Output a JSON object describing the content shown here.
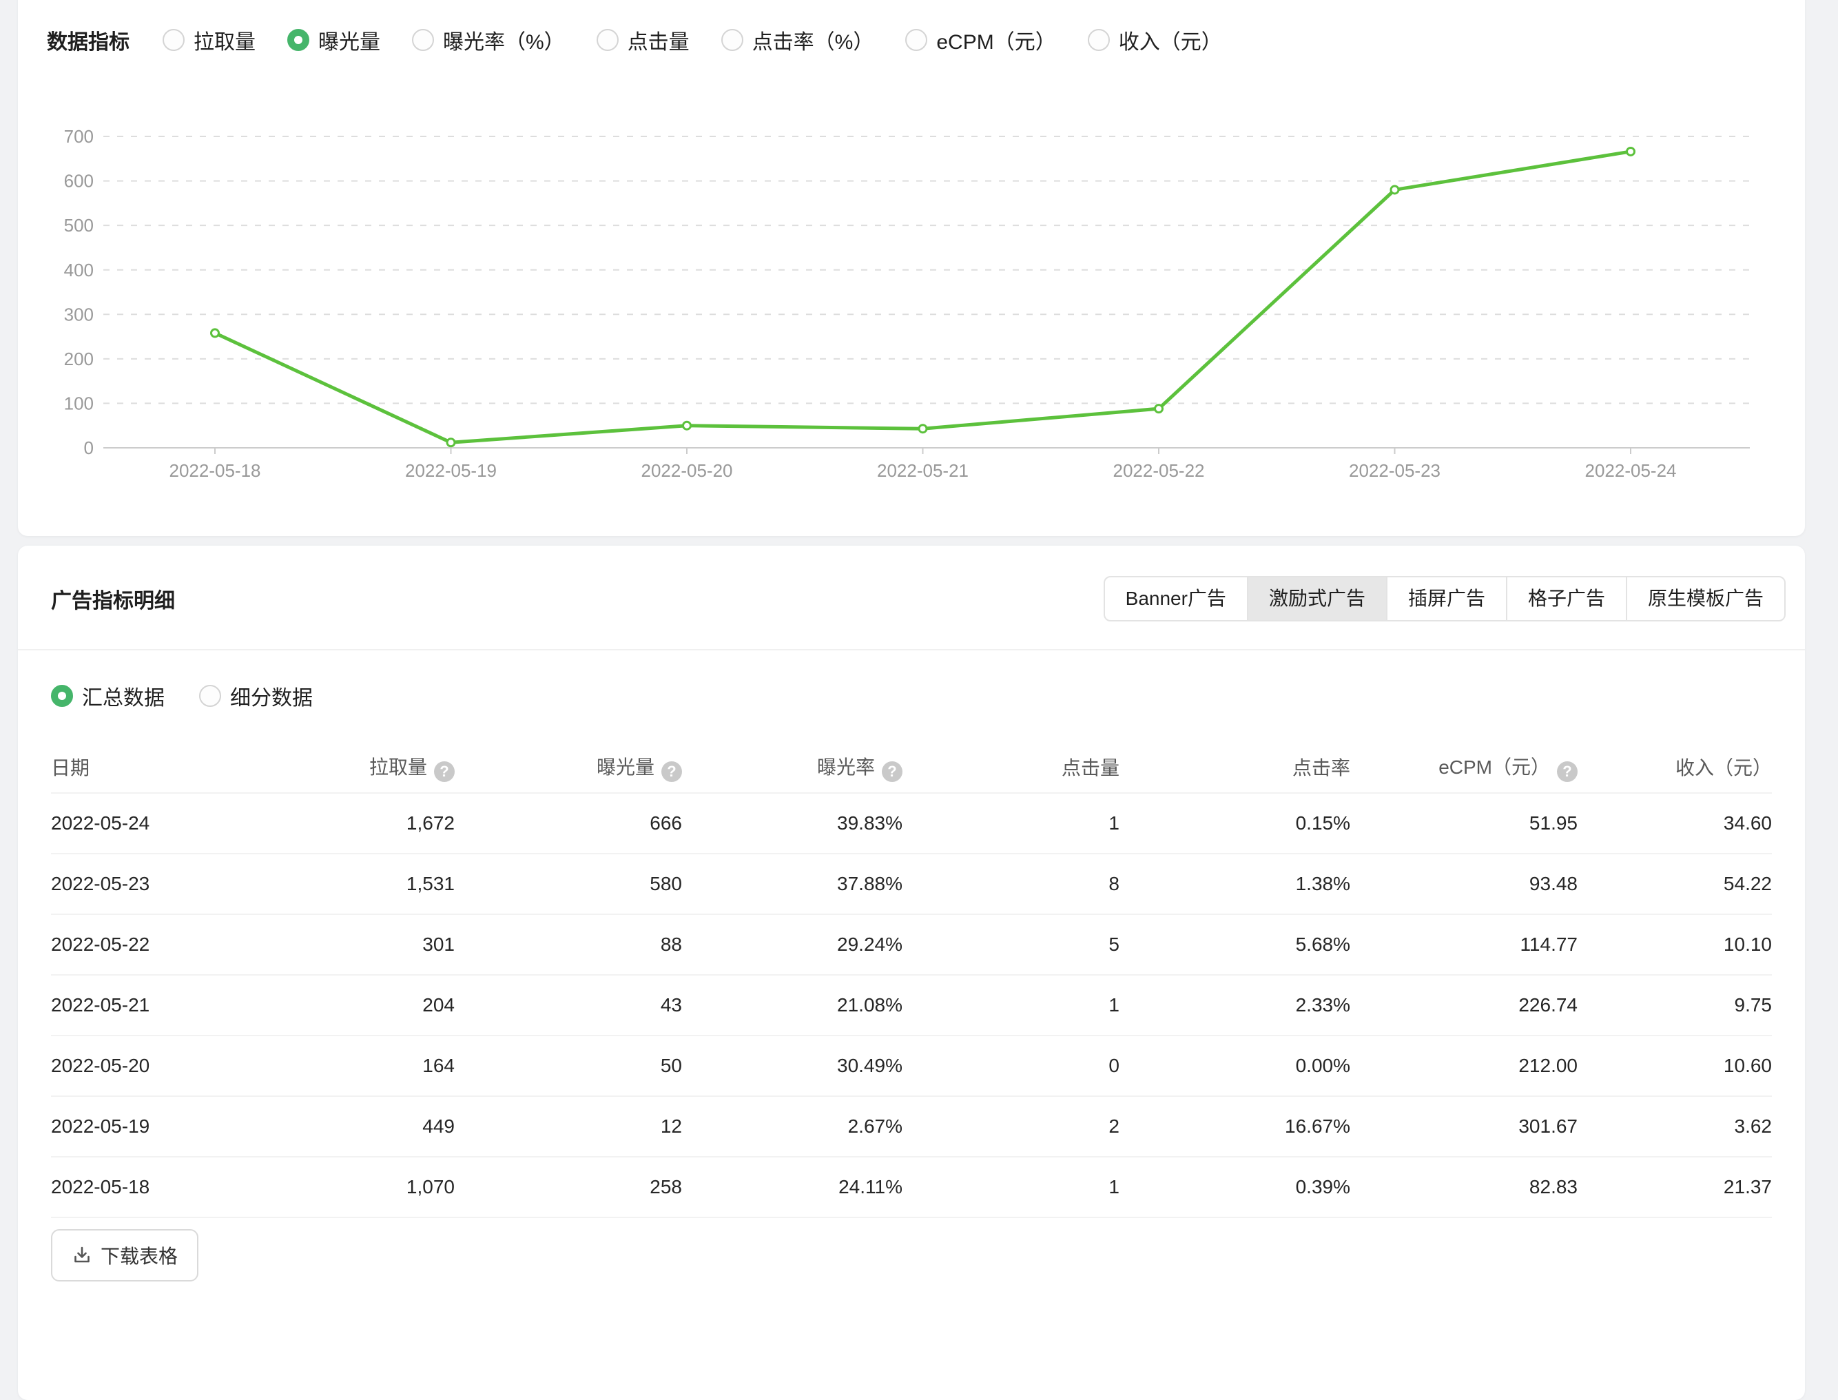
{
  "colors": {
    "line_green": "#5cc13c",
    "radio_green": "#45b56a",
    "tab_selected_bg": "#e7e7e7",
    "axis_label_gray": "#999999"
  },
  "icons": {
    "help_glyph": "?"
  },
  "metrics_bar": {
    "label": "数据指标",
    "options": [
      {
        "label": "拉取量",
        "selected": false
      },
      {
        "label": "曝光量",
        "selected": true
      },
      {
        "label": "曝光率（%）",
        "selected": false
      },
      {
        "label": "点击量",
        "selected": false
      },
      {
        "label": "点击率（%）",
        "selected": false
      },
      {
        "label": "eCPM（元）",
        "selected": false
      },
      {
        "label": "收入（元）",
        "selected": false
      }
    ]
  },
  "chart_data": {
    "type": "line",
    "x": [
      "2022-05-18",
      "2022-05-19",
      "2022-05-20",
      "2022-05-21",
      "2022-05-22",
      "2022-05-23",
      "2022-05-24"
    ],
    "series": [
      {
        "name": "曝光量",
        "values": [
          258,
          12,
          50,
          43,
          88,
          580,
          666
        ]
      }
    ],
    "title": "",
    "xlabel": "",
    "ylabel": "",
    "ylim": [
      0,
      700
    ],
    "yticks": [
      0,
      100,
      200,
      300,
      400,
      500,
      600,
      700
    ],
    "grid": "horizontal-dashed",
    "legend_position": "none",
    "line_color": "#5cc13c",
    "marker": "circle-white-fill"
  },
  "detail_panel": {
    "title": "广告指标明细",
    "tabs": [
      {
        "label": "Banner广告",
        "selected": false
      },
      {
        "label": "激励式广告",
        "selected": true
      },
      {
        "label": "插屏广告",
        "selected": false
      },
      {
        "label": "格子广告",
        "selected": false
      },
      {
        "label": "原生模板广告",
        "selected": false
      }
    ],
    "view_options": [
      {
        "label": "汇总数据",
        "selected": true
      },
      {
        "label": "细分数据",
        "selected": false
      }
    ],
    "table": {
      "columns": [
        {
          "label": "日期",
          "help": false
        },
        {
          "label": "拉取量",
          "help": true
        },
        {
          "label": "曝光量",
          "help": true
        },
        {
          "label": "曝光率",
          "help": true
        },
        {
          "label": "点击量",
          "help": false
        },
        {
          "label": "点击率",
          "help": false
        },
        {
          "label": "eCPM（元）",
          "help": true
        },
        {
          "label": "收入（元）",
          "help": false
        }
      ],
      "rows": [
        [
          "2022-05-24",
          "1,672",
          "666",
          "39.83%",
          "1",
          "0.15%",
          "51.95",
          "34.60"
        ],
        [
          "2022-05-23",
          "1,531",
          "580",
          "37.88%",
          "8",
          "1.38%",
          "93.48",
          "54.22"
        ],
        [
          "2022-05-22",
          "301",
          "88",
          "29.24%",
          "5",
          "5.68%",
          "114.77",
          "10.10"
        ],
        [
          "2022-05-21",
          "204",
          "43",
          "21.08%",
          "1",
          "2.33%",
          "226.74",
          "9.75"
        ],
        [
          "2022-05-20",
          "164",
          "50",
          "30.49%",
          "0",
          "0.00%",
          "212.00",
          "10.60"
        ],
        [
          "2022-05-19",
          "449",
          "12",
          "2.67%",
          "2",
          "16.67%",
          "301.67",
          "3.62"
        ],
        [
          "2022-05-18",
          "1,070",
          "258",
          "24.11%",
          "1",
          "0.39%",
          "82.83",
          "21.37"
        ]
      ]
    },
    "download_button": {
      "label": "下载表格",
      "icon": "download-icon"
    }
  }
}
